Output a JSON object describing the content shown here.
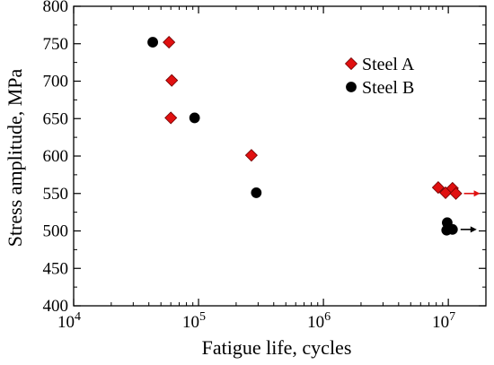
{
  "chart_data": {
    "type": "scatter",
    "title": "",
    "xlabel": "Fatigue life, cycles",
    "ylabel": "Stress amplitude, MPa",
    "xscale": "log",
    "xlim": [
      10000,
      20000000
    ],
    "ylim": [
      400,
      800
    ],
    "yticks": [
      400,
      450,
      500,
      550,
      600,
      650,
      700,
      750,
      800
    ],
    "xticks": [
      {
        "value": 10000,
        "base": "10",
        "exp": "4"
      },
      {
        "value": 100000,
        "base": "10",
        "exp": "5"
      },
      {
        "value": 1000000,
        "base": "10",
        "exp": "6"
      },
      {
        "value": 10000000,
        "base": "10",
        "exp": "7"
      }
    ],
    "legend_position": "top-right",
    "series": [
      {
        "name": "Steel A",
        "marker": "diamond",
        "color": "#e01010",
        "points": [
          {
            "x": 58000,
            "y": 752
          },
          {
            "x": 61000,
            "y": 701
          },
          {
            "x": 60000,
            "y": 651
          },
          {
            "x": 265000,
            "y": 601
          },
          {
            "x": 8300000,
            "y": 558,
            "runout": false
          },
          {
            "x": 9500000,
            "y": 551,
            "runout": false
          },
          {
            "x": 10800000,
            "y": 557,
            "runout": false
          },
          {
            "x": 11500000,
            "y": 550,
            "runout": true
          }
        ]
      },
      {
        "name": "Steel B",
        "marker": "circle",
        "color": "#000000",
        "points": [
          {
            "x": 43000,
            "y": 752
          },
          {
            "x": 93000,
            "y": 651
          },
          {
            "x": 290000,
            "y": 551
          },
          {
            "x": 9800000,
            "y": 511,
            "runout": false
          },
          {
            "x": 9700000,
            "y": 501,
            "runout": false
          },
          {
            "x": 10800000,
            "y": 502,
            "runout": true
          }
        ]
      }
    ]
  }
}
